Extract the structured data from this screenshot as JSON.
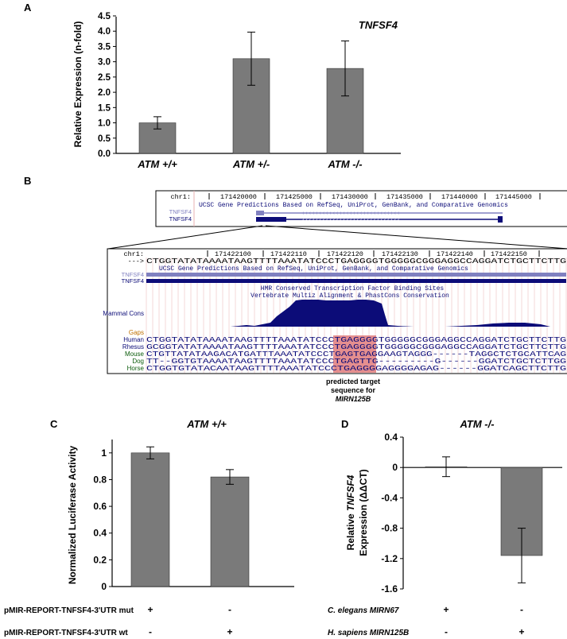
{
  "panels": {
    "A": {
      "letter": "A",
      "gene_label": "TNFSF4",
      "ylabel": "Relative Expression (n-fold)"
    },
    "B": {
      "letter": "B",
      "top_track": {
        "chrom": "chr1:",
        "ticks": [
          "171420000",
          "171425000",
          "171430000",
          "171435000",
          "171440000",
          "171445000"
        ],
        "title": "UCSC Gene Predictions Based on RefSeq, UniProt, GenBank, and Comparative Genomics",
        "tracks": [
          "TNFSF4",
          "TNFSF4"
        ]
      },
      "zoom_track": {
        "chrom": "chr1:",
        "ticks": [
          "171422100",
          "171422110",
          "171422120",
          "171422130",
          "171422140",
          "171422150"
        ],
        "arrow": "--->",
        "sequence": "CTGGTATATAAAATAAGTTTTAAATATCCCTGAGGGGTGGGGGCGGGAGGCCAGGATCTGCTTCTTG",
        "genes_title": "UCSC Gene Predictions Based on RefSeq, UniProt, GenBank, and Comparative Genomics",
        "gene_tracks": [
          "TNFSF4",
          "TNFSF4"
        ],
        "tfbs_title": "HMR Conserved Transcription Factor Binding Sites",
        "cons_title": "Vertebrate Multiz Alignment & PhastCons Conservation",
        "mammal_cons": "Mammal Cons",
        "gaps": "Gaps",
        "species": [
          {
            "name": "Human",
            "seq": "CTGGTATATAAAATAAGTTTTAAATATCCCTGAGGGGTGGGGGCGGGAGGCCAGGATCTGCTTCTTG"
          },
          {
            "name": "Rhesus",
            "seq": "GCGGTATATAAAATAAGTTTTAAATATCCCTGAGGGGTGGGGGCGGGAGGCCAGGATCTGCTTCTTG"
          },
          {
            "name": "Mouse",
            "seq": "CTGTTATATAAGACATGATTTAAATATCCCTGAGTGAGGAAGTAGGG------TAGGCTCTGCATTCAG"
          },
          {
            "name": "Dog",
            "seq": "TT--GGTGTAAAATAAGTTTTAAATATCCCTGAGTTG---------G------GGATCTGCTCTTGG"
          },
          {
            "name": "Horse",
            "seq": "CTGGTGTATACAATAAGTTTTAAATATCCCTGAGGGGAGGGGAGAG------GGATCAGCTTCTTG"
          }
        ],
        "annotation": [
          "predicted target",
          "sequence for",
          "MIRN125B"
        ]
      }
    },
    "C": {
      "letter": "C",
      "title": "ATM +/+",
      "ylabel": "Normalized Luciferase Activity",
      "rows": [
        {
          "label": "pMIR-REPORT-TNFSF4-3'UTR mut",
          "signs": [
            "+",
            "-"
          ]
        },
        {
          "label": "pMIR-REPORT-TNFSF4-3'UTR wt",
          "signs": [
            "-",
            "+"
          ]
        }
      ]
    },
    "D": {
      "letter": "D",
      "title": "ATM -/-",
      "ylabel_parts": [
        "Relative ",
        "TNFSF4",
        "Expression (ΔΔCT)"
      ],
      "rows": [
        {
          "label": "C. elegans MIRN67",
          "signs": [
            "+",
            "-"
          ]
        },
        {
          "label": "H. sapiens MIRN125B",
          "signs": [
            "-",
            "+"
          ]
        }
      ]
    }
  },
  "chart_data": [
    {
      "panel": "A",
      "type": "bar",
      "categories": [
        "ATM +/+",
        "ATM +/-",
        "ATM -/-"
      ],
      "values": [
        1.0,
        3.1,
        2.78
      ],
      "error": [
        0.2,
        0.87,
        0.9
      ],
      "title": "TNFSF4",
      "ylabel": "Relative Expression (n-fold)",
      "ylim": [
        0,
        4.5
      ],
      "yticks": [
        "0.0",
        "0.5",
        "1.0",
        "1.5",
        "2.0",
        "2.5",
        "3.0",
        "3.5",
        "4.0",
        "4.5"
      ],
      "bar_color": "#7a7a7a"
    },
    {
      "panel": "C",
      "type": "bar",
      "categories": [
        "mut",
        "wt"
      ],
      "values": [
        1.0,
        0.82
      ],
      "error": [
        0.045,
        0.055
      ],
      "title": "ATM +/+",
      "ylabel": "Normalized Luciferase Activity",
      "ylim": [
        0,
        1.1
      ],
      "yticks": [
        "0",
        "0.2",
        "0.4",
        "0.6",
        "0.8",
        "1"
      ],
      "bar_color": "#7a7a7a"
    },
    {
      "panel": "D",
      "type": "bar",
      "categories": [
        "C. elegans MIRN67",
        "H. sapiens MIRN125B"
      ],
      "values": [
        0.01,
        -1.16
      ],
      "error": [
        0.13,
        0.36
      ],
      "title": "ATM -/-",
      "ylabel": "Relative TNFSF4 Expression (ΔΔCT)",
      "ylim": [
        -1.6,
        0.4
      ],
      "yticks": [
        "0.4",
        "0",
        "-0.4",
        "-0.8",
        "-1.2",
        "-1.6"
      ],
      "bar_color": "#7a7a7a"
    }
  ],
  "colors": {
    "bar": "#7a7a7a",
    "ucsc_blue": "#0c0c78",
    "ucsc_light": "#8080c0",
    "highlight": "#e07b7b",
    "gaps": "#c07000",
    "grid": "#e8b0b0"
  }
}
